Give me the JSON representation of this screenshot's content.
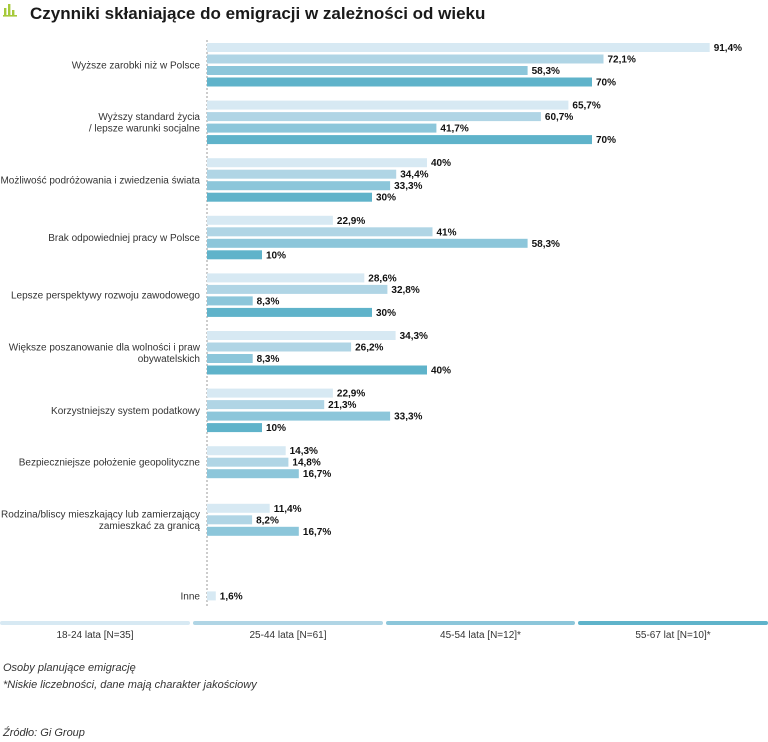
{
  "title": "Czynniki skłaniające do emigracji w zależności od wieku",
  "icon": "bar-chart-icon",
  "colors": {
    "series": [
      "#d7e9f3",
      "#b0d5e5",
      "#8cc6da",
      "#5fb3ca"
    ],
    "axis": "#9a9a9a",
    "icon": "#a6c93a"
  },
  "chart_data": {
    "type": "bar",
    "orientation": "horizontal",
    "title": "Czynniki skłaniające do emigracji w zależności od wieku",
    "unit": "%",
    "xlim": [
      0,
      100
    ],
    "grid": false,
    "legend_placement": "bottom",
    "categories": [
      [
        "Wyższe zarobki niż w Polsce"
      ],
      [
        "Wyższy standard życia",
        "/ lepsze warunki socjalne"
      ],
      [
        "Możliwość podróżowania i zwiedzenia świata"
      ],
      [
        "Brak odpowiedniej pracy w Polsce"
      ],
      [
        "Lepsze perspektywy rozwoju zawodowego"
      ],
      [
        "Większe poszanowanie dla wolności i praw",
        "obywatelskich"
      ],
      [
        "Korzystniejszy system podatkowy"
      ],
      [
        "Bezpieczniejsze położenie geopolityczne"
      ],
      [
        "Rodzina/bliscy mieszkający lub zamierzający",
        "zamieszkać za granicą"
      ],
      [
        "Inne"
      ]
    ],
    "series": [
      {
        "name": "18-24 lata [N=35]",
        "values": [
          91.4,
          65.7,
          40,
          22.9,
          28.6,
          34.3,
          22.9,
          14.3,
          11.4,
          1.6
        ],
        "labels": [
          "91,4%",
          "65,7%",
          "40%",
          "22,9%",
          "28,6%",
          "34,3%",
          "22,9%",
          "14,3%",
          "11,4%",
          "1,6%"
        ]
      },
      {
        "name": "25-44 lata [N=61]",
        "values": [
          72.1,
          60.7,
          34.4,
          41,
          32.8,
          26.2,
          21.3,
          14.8,
          8.2,
          null
        ],
        "labels": [
          "72,1%",
          "60,7%",
          "34,4%",
          "41%",
          "32,8%",
          "26,2%",
          "21,3%",
          "14,8%",
          "8,2%",
          null
        ]
      },
      {
        "name": "45-54 lata [N=12]*",
        "values": [
          58.3,
          41.7,
          33.3,
          58.3,
          8.3,
          8.3,
          33.3,
          16.7,
          16.7,
          null
        ],
        "labels": [
          "58,3%",
          "41,7%",
          "33,3%",
          "58,3%",
          "8,3%",
          "8,3%",
          "33,3%",
          "16,7%",
          "16,7%",
          null
        ]
      },
      {
        "name": "55-67 lat [N=10]*",
        "values": [
          70,
          70,
          30,
          10,
          30,
          40,
          10,
          null,
          null,
          null
        ],
        "labels": [
          "70%",
          "70%",
          "30%",
          "10%",
          "30%",
          "40%",
          "10%",
          null,
          null,
          null
        ]
      }
    ]
  },
  "legend": [
    "18-24 lata [N=35]",
    "25-44 lata [N=61]",
    "45-54 lata [N=12]*",
    "55-67 lat [N=10]*"
  ],
  "notes": {
    "population": "Osoby planujące emigrację",
    "footnote": "*Niskie liczebności, dane mają charakter jakościowy",
    "source": "Źródło: Gi Group"
  }
}
